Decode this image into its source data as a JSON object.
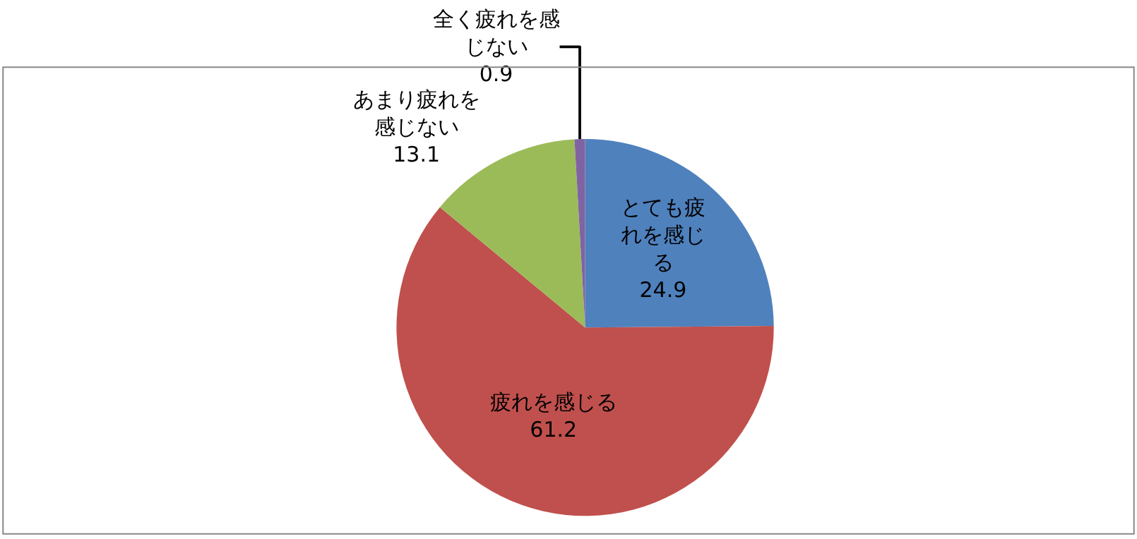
{
  "chart_data": {
    "type": "pie",
    "categories": [
      "とても疲れを感じる",
      "疲れを感じる",
      "あまり疲れを感じない",
      "全く疲れを感じない"
    ],
    "values": [
      24.9,
      61.2,
      13.1,
      0.9
    ],
    "colors": [
      "#4f81bd",
      "#c0504d",
      "#9bbb59",
      "#8064a2"
    ],
    "data_labels": true,
    "legend": false
  }
}
